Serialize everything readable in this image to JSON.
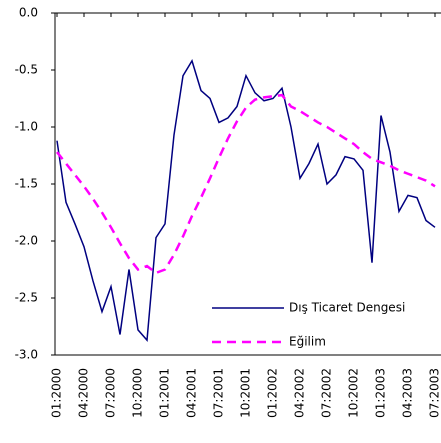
{
  "chart_data": {
    "type": "line",
    "categories": [
      "01:2000",
      null,
      null,
      "04:2000",
      null,
      null,
      "07:2000",
      null,
      null,
      "10:2000",
      null,
      null,
      "01:2001",
      null,
      null,
      "04:2001",
      null,
      null,
      "07:2001",
      null,
      null,
      "10:2001",
      null,
      null,
      "01:2002",
      null,
      null,
      "04:2002",
      null,
      null,
      "07:2002",
      null,
      null,
      "10:2002",
      null,
      null,
      "01:2003",
      null,
      null,
      "04:2003",
      null,
      null,
      "07:2003"
    ],
    "series": [
      {
        "name": "Dış Ticaret Dengesi",
        "color": "#000080",
        "dash": false,
        "values": [
          -1.12,
          -1.66,
          -1.85,
          -2.05,
          -2.35,
          -2.62,
          -2.4,
          -2.82,
          -2.25,
          -2.78,
          -2.87,
          -1.97,
          -1.85,
          -1.07,
          -0.55,
          -0.42,
          -0.68,
          -0.75,
          -0.96,
          -0.92,
          -0.82,
          -0.55,
          -0.7,
          -0.77,
          -0.75,
          -0.66,
          -1.0,
          -1.45,
          -1.32,
          -1.15,
          -1.5,
          -1.42,
          -1.26,
          -1.28,
          -1.38,
          -2.19,
          -0.9,
          -1.22,
          -1.74,
          -1.6,
          -1.62,
          -1.82,
          -1.88
        ]
      },
      {
        "name": "Eğilim",
        "color": "#ff00ff",
        "dash": true,
        "values": [
          -1.22,
          -1.32,
          -1.42,
          -1.52,
          -1.63,
          -1.75,
          -1.88,
          -2.02,
          -2.15,
          -2.25,
          -2.22,
          -2.28,
          -2.25,
          -2.12,
          -1.96,
          -1.78,
          -1.62,
          -1.45,
          -1.27,
          -1.1,
          -0.95,
          -0.83,
          -0.76,
          -0.74,
          -0.73,
          -0.72,
          -0.82,
          -0.86,
          -0.91,
          -0.96,
          -1.0,
          -1.05,
          -1.1,
          -1.15,
          -1.22,
          -1.28,
          -1.31,
          -1.34,
          -1.38,
          -1.41,
          -1.44,
          -1.47,
          -1.52
        ]
      }
    ],
    "ylim": [
      -3.0,
      0.0
    ],
    "yticks": [
      {
        "value": -3.0,
        "label": "-3.0"
      },
      -2.5,
      {
        "value": -2.0,
        "label": "-2.0"
      },
      -1.5,
      {
        "value": -1.0,
        "label": "-1.0"
      },
      -0.5,
      {
        "value": 0.0,
        "label": "0.0"
      }
    ],
    "grid": false,
    "legend": "lower-right"
  }
}
